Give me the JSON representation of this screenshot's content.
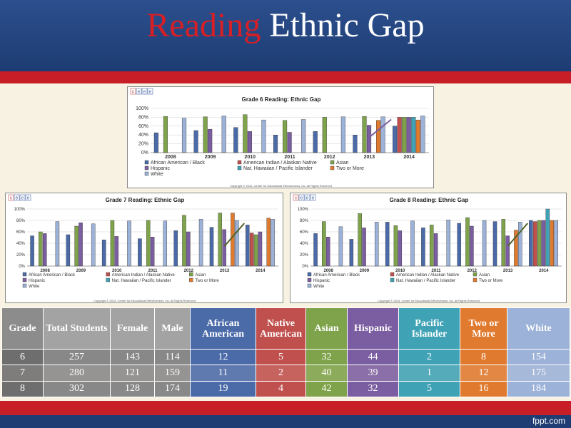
{
  "slide": {
    "title_part1": "Reading",
    "title_part2": "Ethnic Gap",
    "footer_text": "fppt.com"
  },
  "colors": {
    "header_blue": "#1f3d73",
    "accent_red": "#c81e28",
    "series": [
      "#4a6aa8",
      "#c0504d",
      "#7ea34a",
      "#7b5ea1",
      "#3fa2b5",
      "#e07a2f",
      "#9cb2d8"
    ]
  },
  "chart_data": [
    {
      "type": "bar",
      "title": "Grade 6 Reading: Ethnic Gap",
      "categories": [
        "2008",
        "2009",
        "2010",
        "2011",
        "2012",
        "2013",
        "2014"
      ],
      "ylim": [
        0,
        100
      ],
      "yticks": [
        "0%",
        "20%",
        "40%",
        "60%",
        "80%",
        "100%"
      ],
      "series": [
        {
          "name": "African American / Black",
          "values": [
            45,
            50,
            57,
            40,
            48,
            40,
            60
          ]
        },
        {
          "name": "American Indian / Alaskan Native",
          "values": [
            null,
            null,
            null,
            null,
            null,
            null,
            80
          ]
        },
        {
          "name": "Asian",
          "values": [
            82,
            81,
            86,
            73,
            80,
            82,
            80
          ]
        },
        {
          "name": "Hispanic",
          "values": [
            null,
            53,
            48,
            46,
            null,
            62,
            80
          ]
        },
        {
          "name": "Nat. Hawaiian / Pacific Islander",
          "values": [
            null,
            null,
            null,
            null,
            null,
            null,
            80
          ]
        },
        {
          "name": "Two or More",
          "values": [
            null,
            null,
            null,
            null,
            null,
            73,
            74
          ]
        },
        {
          "name": "White",
          "values": [
            78,
            83,
            74,
            75,
            81,
            81,
            83
          ]
        }
      ],
      "legend": [
        "African American / Black",
        "American Indian / Alaskan Native",
        "Asian",
        "Hispanic",
        "Nat. Hawaiian / Pacific Islander",
        "Two or More",
        "White"
      ],
      "copyright": "Copyright © 2014, Center for Educational Effectiveness, Inc. All Rights Reserved."
    },
    {
      "type": "bar",
      "title": "Grade 7 Reading: Ethnic Gap",
      "categories": [
        "2008",
        "2009",
        "2010",
        "2011",
        "2012",
        "2013",
        "2014"
      ],
      "ylim": [
        0,
        100
      ],
      "yticks": [
        "0%",
        "20%",
        "40%",
        "60%",
        "80%",
        "100%"
      ],
      "series": [
        {
          "name": "African American / Black",
          "values": [
            53,
            55,
            46,
            48,
            62,
            68,
            72
          ]
        },
        {
          "name": "American Indian / Alaskan Native",
          "values": [
            null,
            null,
            null,
            null,
            null,
            null,
            58
          ]
        },
        {
          "name": "Asian",
          "values": [
            60,
            70,
            80,
            80,
            89,
            93,
            55
          ]
        },
        {
          "name": "Hispanic",
          "values": [
            57,
            76,
            52,
            51,
            60,
            64,
            60
          ]
        },
        {
          "name": "Nat. Hawaiian / Pacific Islander",
          "values": [
            null,
            null,
            null,
            null,
            null,
            null,
            null
          ]
        },
        {
          "name": "Two or More",
          "values": [
            null,
            null,
            null,
            null,
            null,
            93,
            84
          ]
        },
        {
          "name": "White",
          "values": [
            78,
            74,
            79,
            79,
            82,
            80,
            82
          ]
        }
      ],
      "legend": [
        "African American / Black",
        "American Indian / Alaskan Native",
        "Asian",
        "Hispanic",
        "Nat. Hawaiian / Pacific Islander",
        "Two or More",
        "White"
      ],
      "copyright": "Copyright © 2014, Center for Educational Effectiveness, Inc. All Rights Reserved."
    },
    {
      "type": "bar",
      "title": "Grade 8 Reading: Ethnic Gap",
      "categories": [
        "2008",
        "2009",
        "2010",
        "2011",
        "2012",
        "2013",
        "2014"
      ],
      "ylim": [
        0,
        100
      ],
      "yticks": [
        "0%",
        "20%",
        "40%",
        "60%",
        "80%",
        "100%"
      ],
      "series": [
        {
          "name": "African American / Black",
          "values": [
            57,
            47,
            77,
            67,
            75,
            78,
            80
          ]
        },
        {
          "name": "American Indian / Alaskan Native",
          "values": [
            null,
            null,
            null,
            null,
            null,
            null,
            78
          ]
        },
        {
          "name": "Asian",
          "values": [
            78,
            92,
            71,
            72,
            85,
            82,
            80
          ]
        },
        {
          "name": "Hispanic",
          "values": [
            51,
            67,
            62,
            57,
            70,
            53,
            80
          ]
        },
        {
          "name": "Nat. Hawaiian / Pacific Islander",
          "values": [
            null,
            null,
            null,
            null,
            null,
            null,
            100
          ]
        },
        {
          "name": "Two or More",
          "values": [
            null,
            null,
            null,
            null,
            null,
            63,
            80
          ]
        },
        {
          "name": "White",
          "values": [
            69,
            77,
            79,
            81,
            80,
            77,
            80
          ]
        }
      ],
      "legend": [
        "African American / Black",
        "American Indian / Alaskan Native",
        "Asian",
        "Hispanic",
        "Nat. Hawaiian / Pacific Islander",
        "Two or More",
        "White"
      ],
      "copyright": "Copyright © 2014, Center for Educational Effectiveness, Inc. All Rights Reserved."
    }
  ],
  "table": {
    "headers": [
      "Grade",
      "Total Students",
      "Female",
      "Male",
      "African American",
      "Native American",
      "Asian",
      "Hispanic",
      "Pacific Islander",
      "Two or More",
      "White"
    ],
    "rows": [
      [
        "6",
        "257",
        "143",
        "114",
        "12",
        "5",
        "32",
        "44",
        "2",
        "8",
        "154"
      ],
      [
        "7",
        "280",
        "121",
        "159",
        "11",
        "2",
        "40",
        "39",
        "1",
        "12",
        "175"
      ],
      [
        "8",
        "302",
        "128",
        "174",
        "19",
        "4",
        "42",
        "32",
        "5",
        "16",
        "184"
      ]
    ]
  }
}
